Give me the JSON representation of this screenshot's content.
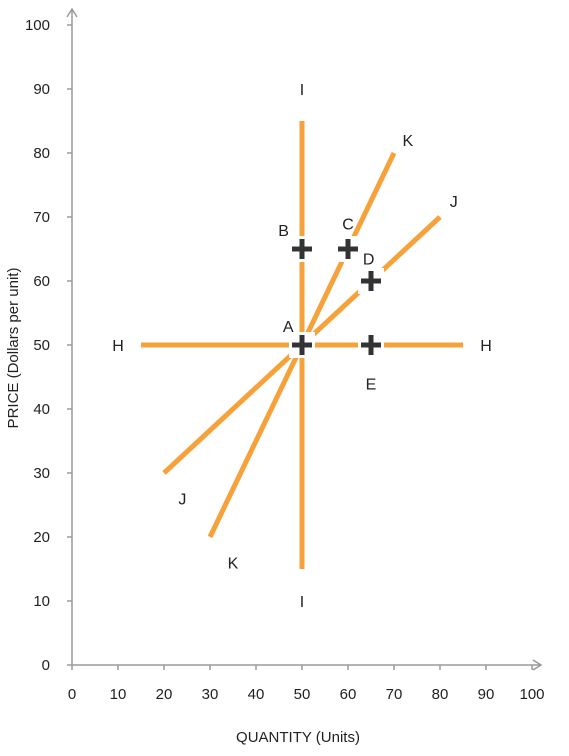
{
  "chart_data": {
    "type": "line",
    "title": "",
    "xlabel": "QUANTITY (Units)",
    "ylabel": "PRICE (Dollars per unit)",
    "xlim": [
      0,
      100
    ],
    "ylim": [
      0,
      100
    ],
    "x_ticks": [
      0,
      10,
      20,
      30,
      40,
      50,
      60,
      70,
      80,
      90,
      100
    ],
    "y_ticks": [
      0,
      10,
      20,
      30,
      40,
      50,
      60,
      70,
      80,
      90,
      100
    ],
    "grid": false,
    "line_color": "#f7a13a",
    "marker_color": "#333333",
    "series": [
      {
        "name": "H",
        "points": [
          [
            15,
            50
          ],
          [
            85,
            50
          ]
        ],
        "end_labels": [
          {
            "text": "H",
            "at": [
              10,
              50
            ]
          },
          {
            "text": "H",
            "at": [
              90,
              50
            ]
          }
        ]
      },
      {
        "name": "I",
        "points": [
          [
            50,
            15
          ],
          [
            50,
            85
          ]
        ],
        "end_labels": [
          {
            "text": "I",
            "at": [
              50,
              10
            ]
          },
          {
            "text": "I",
            "at": [
              50,
              90
            ]
          }
        ]
      },
      {
        "name": "J",
        "points": [
          [
            20,
            30
          ],
          [
            80,
            70
          ]
        ],
        "end_labels": [
          {
            "text": "J",
            "at": [
              24,
              26
            ]
          },
          {
            "text": "J",
            "at": [
              83,
              72.5
            ]
          }
        ]
      },
      {
        "name": "K",
        "points": [
          [
            30,
            20
          ],
          [
            70,
            80
          ]
        ],
        "end_labels": [
          {
            "text": "K",
            "at": [
              35,
              16
            ]
          },
          {
            "text": "K",
            "at": [
              73,
              82
            ]
          }
        ]
      }
    ],
    "points": [
      {
        "label": "A",
        "x": 50,
        "y": 50,
        "label_at": [
          47,
          53
        ]
      },
      {
        "label": "B",
        "x": 50,
        "y": 65,
        "label_at": [
          46,
          68
        ]
      },
      {
        "label": "C",
        "x": 60,
        "y": 65,
        "label_at": [
          60,
          69
        ]
      },
      {
        "label": "D",
        "x": 65,
        "y": 60,
        "label_at": [
          64.5,
          63.5
        ]
      },
      {
        "label": "E",
        "x": 65,
        "y": 50,
        "label_at": [
          65,
          44
        ]
      }
    ]
  }
}
